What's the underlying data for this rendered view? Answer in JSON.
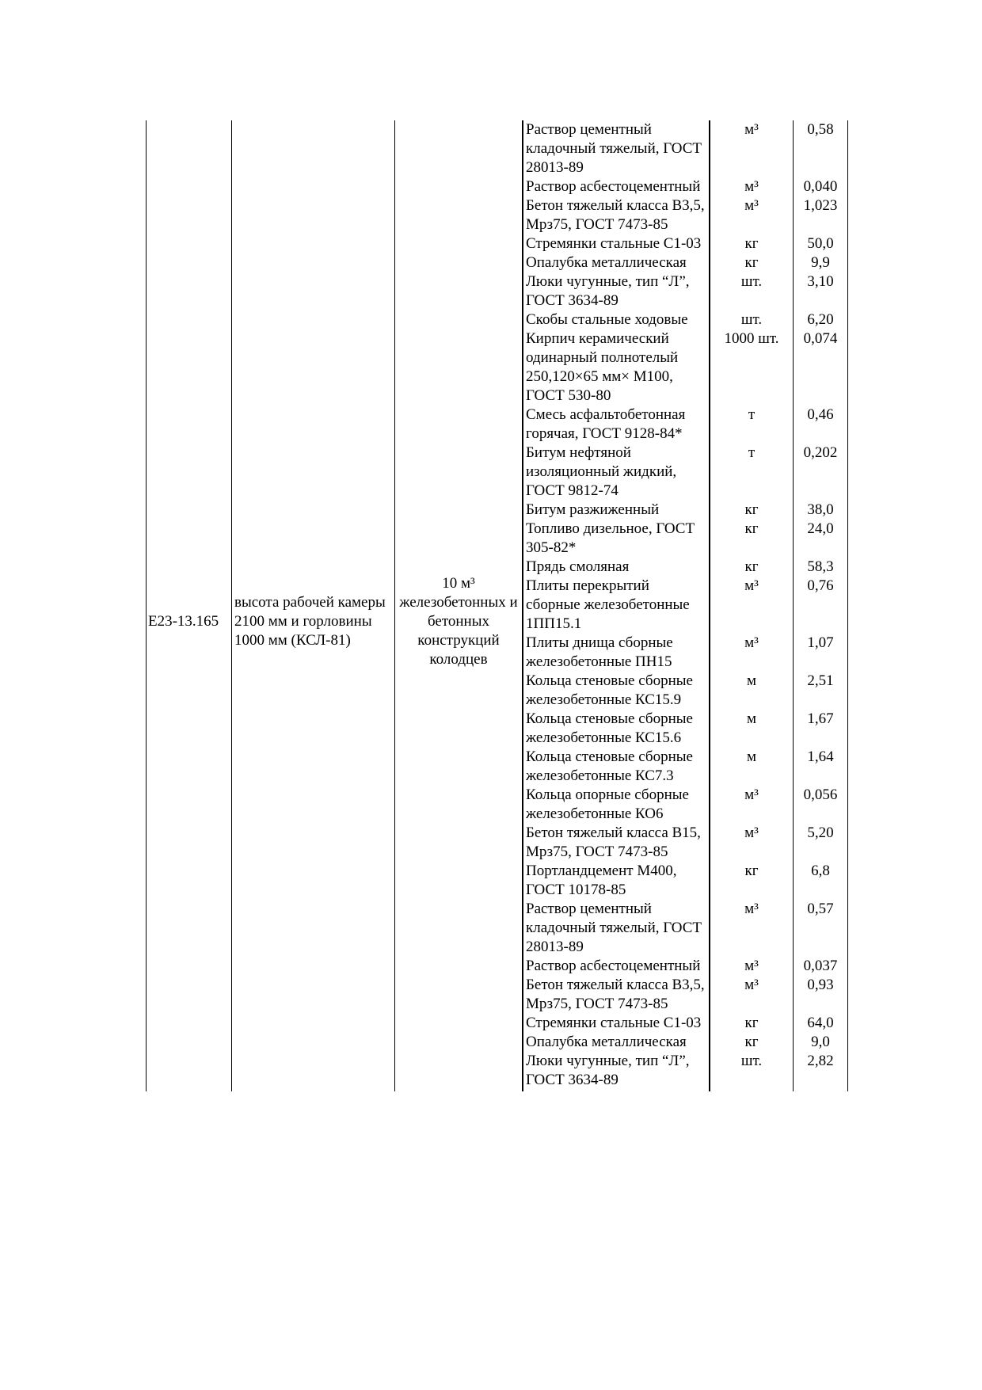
{
  "code": "Е23-13.165",
  "description": "высота рабочей камеры 2100 мм и горловины 1000 мм (КСЛ-81)",
  "meter": "10 м³ железобетонных и бетонных конструкций колодцев",
  "rows": [
    {
      "material": "Раствор цементный кладочный тяжелый, ГОСТ 28013-89",
      "unit": "м³",
      "value": "0,58"
    },
    {
      "material": "Раствор асбестоцементный",
      "unit": "м³",
      "value": "0,040"
    },
    {
      "material": "Бетон тяжелый класса В3,5, Мрз75, ГОСТ 7473-85",
      "unit": "м³",
      "value": "1,023"
    },
    {
      "material": "Стремянки стальные С1-03",
      "unit": "кг",
      "value": "50,0"
    },
    {
      "material": "Опалубка металлическая",
      "unit": "кг",
      "value": "9,9"
    },
    {
      "material": "Люки чугунные, тип “Л”, ГОСТ 3634-89",
      "unit": "шт.",
      "value": "3,10"
    },
    {
      "material": "Скобы стальные ходовые",
      "unit": "шт.",
      "value": "6,20"
    },
    {
      "material": "Кирпич керамический одинарный полнотелый 250,120×65 мм× М100, ГОСТ 530-80",
      "unit": "1000 шт.",
      "value": "0,074"
    },
    {
      "material": "Смесь асфальтобетонная горячая, ГОСТ 9128-84*",
      "unit": "т",
      "value": "0,46"
    },
    {
      "material": "Битум нефтяной изоляционный жидкий, ГОСТ 9812-74",
      "unit": "т",
      "value": "0,202"
    },
    {
      "material": "Битум разжиженный",
      "unit": "кг",
      "value": "38,0"
    },
    {
      "material": "Топливо дизельное, ГОСТ 305-82*",
      "unit": "кг",
      "value": "24,0"
    },
    {
      "material": "Прядь смоляная",
      "unit": "кг",
      "value": "58,3"
    },
    {
      "material": "Плиты перекрытий сборные железобетонные 1ПП15.1",
      "unit": "м³",
      "value": "0,76"
    },
    {
      "material": "Плиты днища сборные железобетонные ПН15",
      "unit": "м³",
      "value": "1,07"
    },
    {
      "material": "Кольца стеновые сборные железобетонные КС15.9",
      "unit": "м",
      "value": "2,51"
    },
    {
      "material": "Кольца стеновые сборные железобетонные КС15.6",
      "unit": "м",
      "value": "1,67"
    },
    {
      "material": "Кольца стеновые сборные железобетонные КС7.3",
      "unit": "м",
      "value": "1,64"
    },
    {
      "material": "Кольца опорные сборные железобетонные КО6",
      "unit": "м³",
      "value": "0,056"
    },
    {
      "material": "Бетон тяжелый класса В15, Мрз75, ГОСТ 7473-85",
      "unit": "м³",
      "value": "5,20"
    },
    {
      "material": "Портландцемент М400, ГОСТ 10178-85",
      "unit": "кг",
      "value": "6,8"
    },
    {
      "material": "Раствор цементный кладочный тяжелый, ГОСТ 28013-89",
      "unit": "м³",
      "value": "0,57"
    },
    {
      "material": "Раствор асбестоцементный",
      "unit": "м³",
      "value": "0,037"
    },
    {
      "material": "Бетон тяжелый класса В3,5, Мрз75, ГОСТ 7473-85",
      "unit": "м³",
      "value": "0,93"
    },
    {
      "material": "Стремянки стальные С1-03",
      "unit": "кг",
      "value": "64,0"
    },
    {
      "material": "Опалубка металлическая",
      "unit": "кг",
      "value": "9,0"
    },
    {
      "material": "Люки чугунные, тип “Л”, ГОСТ 3634-89",
      "unit": "шт.",
      "value": "2,82"
    }
  ]
}
